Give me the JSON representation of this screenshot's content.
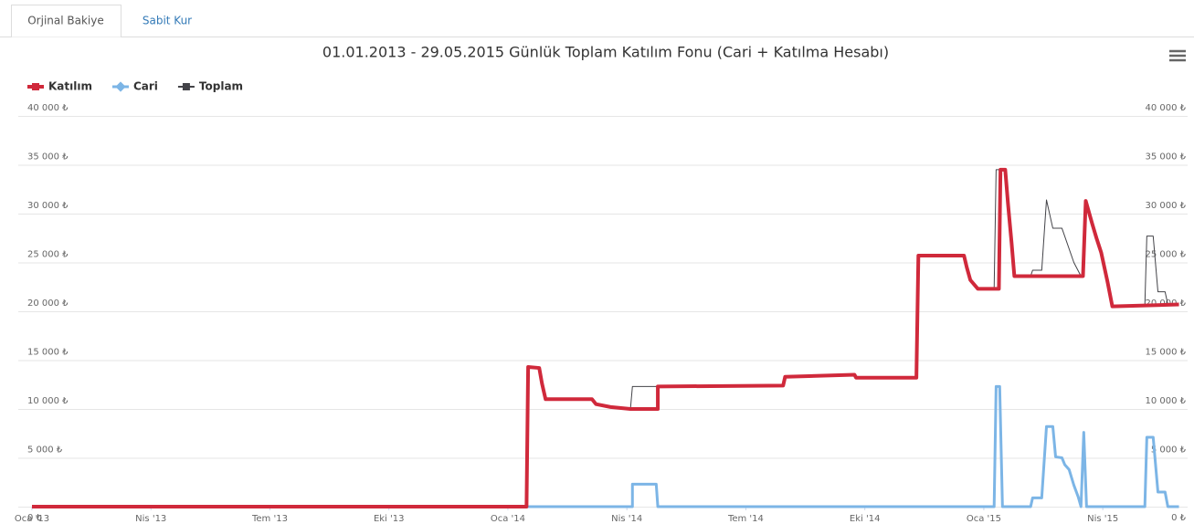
{
  "tabs": [
    "Orjinal Bakiye",
    "Sabit Kur"
  ],
  "chart_data": {
    "type": "line",
    "title": "01.01.2013 - 29.05.2015 Günlük Toplam Katılım Fonu (Cari + Katılma Hesabı)",
    "xlim": [
      0,
      29
    ],
    "xticks": [
      {
        "value": 0,
        "label": "Oca '13"
      },
      {
        "value": 3,
        "label": "Nis '13"
      },
      {
        "value": 6,
        "label": "Tem '13"
      },
      {
        "value": 9,
        "label": "Eki '13"
      },
      {
        "value": 12,
        "label": "Oca '14"
      },
      {
        "value": 15,
        "label": "Nis '14"
      },
      {
        "value": 18,
        "label": "Tem '14"
      },
      {
        "value": 21,
        "label": "Eki '14"
      },
      {
        "value": 24,
        "label": "Oca '15"
      },
      {
        "value": 27,
        "label": "Nis '15"
      }
    ],
    "ylim": [
      0,
      40000
    ],
    "yticks": [
      {
        "value": 0,
        "label": "0 ₺"
      },
      {
        "value": 5000,
        "label": "5 000 ₺"
      },
      {
        "value": 10000,
        "label": "10 000 ₺"
      },
      {
        "value": 15000,
        "label": "15 000 ₺"
      },
      {
        "value": 20000,
        "label": "20 000 ₺"
      },
      {
        "value": 25000,
        "label": "25 000 ₺"
      },
      {
        "value": 30000,
        "label": "30 000 ₺"
      },
      {
        "value": 35000,
        "label": "35 000 ₺"
      },
      {
        "value": 40000,
        "label": "40 000 ₺"
      }
    ],
    "y2lim": [
      0,
      40000
    ],
    "y2ticks": [
      {
        "value": 0,
        "label": "0 ₺"
      },
      {
        "value": 5000,
        "label": "5 000 ₺"
      },
      {
        "value": 10000,
        "label": "10 000 ₺"
      },
      {
        "value": 15000,
        "label": "15 000 ₺"
      },
      {
        "value": 20000,
        "label": "20 000 ₺"
      },
      {
        "value": 25000,
        "label": "25 000 ₺"
      },
      {
        "value": 30000,
        "label": "30 000 ₺"
      },
      {
        "value": 35000,
        "label": "35 000 ₺"
      },
      {
        "value": 40000,
        "label": "40 000 ₺"
      }
    ],
    "grid": true,
    "legend": "top-left",
    "series": [
      {
        "name": "Katılım",
        "color": "#d0293b",
        "width": 4,
        "x": [
          0,
          12.47,
          12.51,
          12.79,
          12.86,
          12.95,
          14.12,
          14.22,
          14.59,
          15.09,
          15.78,
          15.78,
          18.94,
          18.99,
          20.74,
          20.78,
          22.3,
          22.35,
          23.5,
          23.57,
          23.66,
          23.85,
          24.38,
          24.42,
          24.54,
          24.61,
          24.7,
          24.77,
          26.5,
          26.57,
          26.73,
          26.84,
          26.96,
          27.12,
          27.24,
          28.92
        ],
        "values": [
          0,
          0,
          14300,
          14200,
          12600,
          11000,
          11000,
          10500,
          10200,
          10000,
          10000,
          12300,
          12400,
          13300,
          13500,
          13200,
          13200,
          25700,
          25700,
          24500,
          23200,
          22300,
          22300,
          34500,
          34500,
          31000,
          27000,
          23600,
          23600,
          31300,
          29000,
          27500,
          26000,
          23000,
          20500,
          20700
        ]
      },
      {
        "name": "Cari",
        "color": "#7cb5e6",
        "width": 3,
        "x": [
          0,
          15.14,
          15.14,
          15.74,
          15.78,
          24.26,
          24.31,
          24.4,
          24.47,
          25.18,
          25.23,
          25.46,
          25.58,
          25.74,
          25.81,
          25.97,
          26.04,
          26.15,
          26.27,
          26.38,
          26.45,
          26.52,
          26.59,
          28.06,
          28.11,
          28.27,
          28.39,
          28.57,
          28.64,
          28.92
        ],
        "values": [
          0,
          0,
          2300,
          2300,
          0,
          0,
          12300,
          12300,
          0,
          0,
          900,
          900,
          8200,
          8200,
          5100,
          5000,
          4300,
          3800,
          2200,
          1000,
          0,
          7600,
          0,
          0,
          7100,
          7100,
          1500,
          1500,
          0,
          0
        ]
      },
      {
        "name": "Toplam",
        "color": "#434348",
        "width": 1,
        "x": [
          0,
          12.47,
          12.51,
          12.79,
          12.86,
          12.95,
          14.12,
          14.22,
          14.59,
          15.09,
          15.14,
          15.78,
          18.94,
          18.99,
          20.74,
          20.78,
          22.3,
          22.35,
          23.5,
          23.57,
          23.66,
          23.85,
          24.26,
          24.31,
          24.54,
          24.61,
          24.7,
          24.77,
          25.18,
          25.23,
          25.46,
          25.58,
          25.74,
          25.97,
          26.27,
          26.45,
          26.5,
          26.57,
          26.73,
          26.84,
          26.96,
          27.12,
          27.24,
          28.06,
          28.11,
          28.27,
          28.39,
          28.57,
          28.64,
          28.92
        ],
        "values": [
          0,
          0,
          14300,
          14200,
          12600,
          11000,
          11000,
          10500,
          10200,
          10000,
          12300,
          12300,
          12400,
          13300,
          13500,
          13200,
          13200,
          25700,
          25700,
          24500,
          23200,
          22300,
          22300,
          34500,
          34500,
          31000,
          27000,
          23600,
          23600,
          24200,
          24200,
          31400,
          28500,
          28500,
          25000,
          23600,
          23600,
          31300,
          29000,
          27500,
          26000,
          23000,
          20500,
          20600,
          27700,
          27700,
          22000,
          22000,
          20700,
          20700
        ]
      }
    ]
  }
}
